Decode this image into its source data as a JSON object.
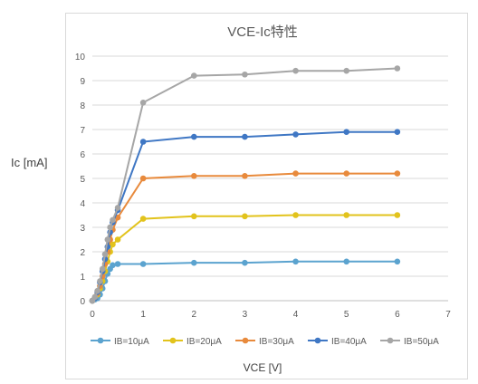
{
  "chart_data": {
    "type": "scatter",
    "title": "VCE-Ic特性",
    "xlabel": "VCE [V]",
    "ylabel": "Ic [mA]",
    "xlim": [
      0,
      7
    ],
    "ylim": [
      0,
      10
    ],
    "xticks": [
      0,
      1,
      2,
      3,
      4,
      5,
      6,
      7
    ],
    "yticks": [
      0,
      1,
      2,
      3,
      4,
      5,
      6,
      7,
      8,
      9,
      10
    ],
    "grid": "horizontal",
    "legend": "bottom",
    "series": [
      {
        "name": "IB=10μA",
        "color": "#5ba3cf",
        "points": [
          [
            0,
            0
          ],
          [
            0.05,
            0.05
          ],
          [
            0.1,
            0.1
          ],
          [
            0.15,
            0.25
          ],
          [
            0.2,
            0.5
          ],
          [
            0.25,
            0.8
          ],
          [
            0.3,
            1.1
          ],
          [
            0.35,
            1.3
          ],
          [
            0.4,
            1.45
          ],
          [
            0.5,
            1.5
          ],
          [
            1,
            1.5
          ],
          [
            2,
            1.55
          ],
          [
            3,
            1.55
          ],
          [
            4,
            1.6
          ],
          [
            5,
            1.6
          ],
          [
            6,
            1.6
          ]
        ]
      },
      {
        "name": "IB=20μA",
        "color": "#e2c31c",
        "points": [
          [
            0,
            0
          ],
          [
            0.05,
            0.1
          ],
          [
            0.1,
            0.25
          ],
          [
            0.15,
            0.5
          ],
          [
            0.2,
            0.8
          ],
          [
            0.25,
            1.2
          ],
          [
            0.3,
            1.6
          ],
          [
            0.35,
            2.0
          ],
          [
            0.4,
            2.3
          ],
          [
            0.5,
            2.5
          ],
          [
            1,
            3.35
          ],
          [
            2,
            3.45
          ],
          [
            3,
            3.45
          ],
          [
            4,
            3.5
          ],
          [
            5,
            3.5
          ],
          [
            6,
            3.5
          ]
        ]
      },
      {
        "name": "IB=30μA",
        "color": "#e88a3c",
        "points": [
          [
            0,
            0
          ],
          [
            0.05,
            0.1
          ],
          [
            0.1,
            0.3
          ],
          [
            0.15,
            0.6
          ],
          [
            0.2,
            1.0
          ],
          [
            0.25,
            1.5
          ],
          [
            0.3,
            2.0
          ],
          [
            0.35,
            2.5
          ],
          [
            0.4,
            2.9
          ],
          [
            0.5,
            3.4
          ],
          [
            1,
            5.0
          ],
          [
            2,
            5.1
          ],
          [
            3,
            5.1
          ],
          [
            4,
            5.2
          ],
          [
            5,
            5.2
          ],
          [
            6,
            5.2
          ]
        ]
      },
      {
        "name": "IB=40μA",
        "color": "#3f77c4",
        "points": [
          [
            0,
            0
          ],
          [
            0.05,
            0.1
          ],
          [
            0.1,
            0.35
          ],
          [
            0.15,
            0.75
          ],
          [
            0.2,
            1.2
          ],
          [
            0.25,
            1.7
          ],
          [
            0.3,
            2.2
          ],
          [
            0.35,
            2.8
          ],
          [
            0.4,
            3.2
          ],
          [
            0.5,
            3.7
          ],
          [
            1,
            6.5
          ],
          [
            2,
            6.7
          ],
          [
            3,
            6.7
          ],
          [
            4,
            6.8
          ],
          [
            5,
            6.9
          ],
          [
            6,
            6.9
          ]
        ]
      },
      {
        "name": "IB=50μA",
        "color": "#a6a6a6",
        "points": [
          [
            0,
            0
          ],
          [
            0.05,
            0.15
          ],
          [
            0.1,
            0.4
          ],
          [
            0.15,
            0.8
          ],
          [
            0.2,
            1.3
          ],
          [
            0.25,
            1.9
          ],
          [
            0.3,
            2.5
          ],
          [
            0.35,
            3.0
          ],
          [
            0.4,
            3.3
          ],
          [
            0.5,
            3.8
          ],
          [
            1,
            8.1
          ],
          [
            2,
            9.2
          ],
          [
            3,
            9.25
          ],
          [
            4,
            9.4
          ],
          [
            5,
            9.4
          ],
          [
            6,
            9.5
          ]
        ]
      }
    ]
  }
}
